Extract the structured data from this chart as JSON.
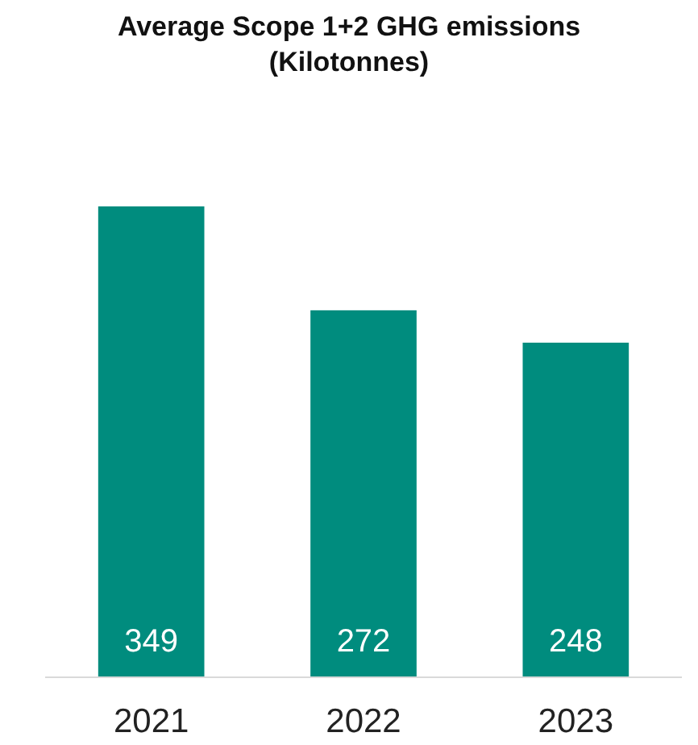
{
  "chart_data": {
    "type": "bar",
    "title": "Average Scope 1+2 GHG emissions (Kilotonnes)",
    "categories": [
      "2021",
      "2022",
      "2023"
    ],
    "values": [
      349,
      272,
      248
    ],
    "color": "#008c7e",
    "data_labels": true
  }
}
